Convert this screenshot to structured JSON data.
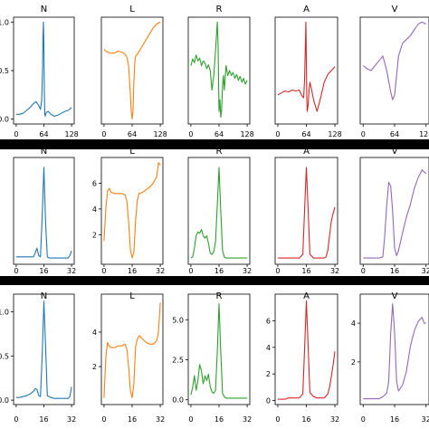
{
  "chart_data": [
    {
      "type": "line",
      "title": "N",
      "color": "#1f77b4",
      "xticks": [
        0,
        64,
        128
      ],
      "yticks": [
        {
          "v": 0.0,
          "label": "0.0"
        },
        {
          "v": 0.5,
          "label": "0.5"
        },
        {
          "v": 1.0,
          "label": "1.0"
        }
      ],
      "xlim": [
        -6,
        134
      ],
      "ylim": [
        -0.05,
        1.05
      ],
      "x": [
        0,
        8,
        16,
        24,
        32,
        40,
        46,
        52,
        56,
        59,
        61,
        62,
        63,
        64,
        65,
        66,
        67,
        68,
        70,
        74,
        80,
        88,
        96,
        104,
        112,
        120,
        128
      ],
      "y": [
        0.05,
        0.05,
        0.06,
        0.09,
        0.12,
        0.16,
        0.18,
        0.14,
        0.1,
        0.2,
        0.55,
        0.85,
        1.0,
        0.75,
        0.3,
        0.05,
        0.03,
        0.05,
        0.07,
        0.08,
        0.05,
        0.03,
        0.04,
        0.06,
        0.08,
        0.09,
        0.12
      ]
    },
    {
      "type": "line",
      "title": "L",
      "color": "#ff7f0e",
      "xticks": [
        0,
        64,
        128
      ],
      "yticks": [],
      "xlim": [
        -6,
        134
      ],
      "ylim": [
        -0.05,
        1.05
      ],
      "x": [
        0,
        4,
        8,
        16,
        24,
        32,
        40,
        48,
        52,
        56,
        58,
        60,
        62,
        64,
        66,
        68,
        70,
        72,
        76,
        80,
        88,
        96,
        104,
        112,
        120,
        128
      ],
      "y": [
        0.72,
        0.7,
        0.69,
        0.68,
        0.68,
        0.7,
        0.69,
        0.67,
        0.64,
        0.55,
        0.4,
        0.25,
        0.08,
        0.0,
        0.1,
        0.38,
        0.58,
        0.65,
        0.67,
        0.7,
        0.76,
        0.82,
        0.88,
        0.94,
        0.98,
        1.0
      ]
    },
    {
      "type": "line",
      "title": "R",
      "color": "#2ca02c",
      "xticks": [
        0,
        64,
        128
      ],
      "yticks": [],
      "xlim": [
        -6,
        134
      ],
      "ylim": [
        -0.05,
        1.05
      ],
      "x": [
        0,
        4,
        8,
        12,
        16,
        20,
        24,
        28,
        32,
        36,
        40,
        44,
        48,
        52,
        56,
        58,
        60,
        62,
        63,
        64,
        66,
        68,
        70,
        72,
        74,
        76,
        80,
        84,
        88,
        92,
        96,
        100,
        104,
        108,
        112,
        116,
        120,
        124,
        128
      ],
      "y": [
        0.55,
        0.62,
        0.58,
        0.66,
        0.6,
        0.63,
        0.55,
        0.6,
        0.58,
        0.52,
        0.56,
        0.5,
        0.3,
        0.45,
        0.7,
        0.85,
        1.0,
        0.75,
        0.4,
        0.08,
        0.2,
        0.02,
        0.1,
        0.35,
        0.45,
        0.3,
        0.55,
        0.45,
        0.5,
        0.45,
        0.48,
        0.42,
        0.46,
        0.4,
        0.44,
        0.38,
        0.42,
        0.36,
        0.4
      ]
    },
    {
      "type": "line",
      "title": "A",
      "color": "#d62728",
      "xticks": [
        0,
        64,
        128
      ],
      "yticks": [],
      "xlim": [
        -6,
        134
      ],
      "ylim": [
        -0.05,
        1.05
      ],
      "x": [
        0,
        8,
        16,
        24,
        32,
        40,
        48,
        54,
        58,
        60,
        62,
        63,
        64,
        65,
        66,
        68,
        70,
        72,
        76,
        80,
        88,
        96,
        104,
        112,
        120,
        128
      ],
      "y": [
        0.25,
        0.27,
        0.29,
        0.28,
        0.3,
        0.29,
        0.3,
        0.24,
        0.22,
        0.4,
        0.8,
        1.0,
        0.6,
        0.2,
        0.08,
        0.15,
        0.3,
        0.38,
        0.3,
        0.2,
        0.08,
        0.22,
        0.38,
        0.46,
        0.5,
        0.54
      ]
    },
    {
      "type": "line",
      "title": "V",
      "color": "#9467bd",
      "xticks": [
        0,
        64,
        128
      ],
      "yticks": [],
      "xlim": [
        -6,
        134
      ],
      "ylim": [
        -0.05,
        1.05
      ],
      "x": [
        0,
        8,
        16,
        24,
        32,
        40,
        48,
        56,
        60,
        64,
        68,
        72,
        80,
        88,
        96,
        104,
        112,
        120,
        128
      ],
      "y": [
        0.55,
        0.52,
        0.5,
        0.55,
        0.6,
        0.65,
        0.5,
        0.28,
        0.2,
        0.25,
        0.45,
        0.65,
        0.78,
        0.82,
        0.86,
        0.92,
        0.98,
        1.0,
        0.98
      ]
    },
    {
      "type": "line",
      "title": "N",
      "color": "#1f77b4",
      "xticks": [
        0,
        16,
        32
      ],
      "yticks": [],
      "xlim": [
        -1.5,
        33.5
      ],
      "ylim": [
        -0.3,
        8.3
      ],
      "x": [
        0,
        2,
        4,
        6,
        8,
        10,
        11,
        12,
        13,
        14,
        15,
        16,
        17,
        18,
        19,
        20,
        22,
        24,
        26,
        28,
        30,
        31,
        32
      ],
      "y": [
        0.3,
        0.3,
        0.3,
        0.3,
        0.3,
        0.3,
        0.6,
        1.0,
        0.4,
        0.3,
        3.5,
        7.5,
        3.0,
        0.3,
        0.2,
        0.2,
        0.2,
        0.2,
        0.2,
        0.2,
        0.2,
        0.4,
        0.8
      ]
    },
    {
      "type": "line",
      "title": "L",
      "color": "#ff7f0e",
      "xticks": [
        0,
        16,
        32
      ],
      "yticks": [
        {
          "v": 2,
          "label": "2"
        },
        {
          "v": 4,
          "label": "4"
        },
        {
          "v": 6,
          "label": "6"
        }
      ],
      "xlim": [
        -1.5,
        33.5
      ],
      "ylim": [
        -0.3,
        8.0
      ],
      "x": [
        0,
        1,
        2,
        3,
        4,
        6,
        8,
        10,
        12,
        13,
        14,
        15,
        16,
        17,
        18,
        19,
        20,
        22,
        24,
        26,
        28,
        30,
        31,
        32
      ],
      "y": [
        1.5,
        4.0,
        5.4,
        5.6,
        5.3,
        5.2,
        5.2,
        5.2,
        5.1,
        4.6,
        3.0,
        0.8,
        0.2,
        0.6,
        3.2,
        4.7,
        5.2,
        5.3,
        5.5,
        5.7,
        6.0,
        6.5,
        7.6,
        7.4
      ]
    },
    {
      "type": "line",
      "title": "R",
      "color": "#2ca02c",
      "xticks": [
        0,
        16,
        32
      ],
      "yticks": [],
      "xlim": [
        -1.5,
        33.5
      ],
      "ylim": [
        -0.3,
        8.3
      ],
      "x": [
        0,
        1,
        2,
        3,
        4,
        5,
        6,
        7,
        8,
        9,
        10,
        11,
        12,
        13,
        14,
        15,
        16,
        17,
        18,
        19,
        20,
        22,
        24,
        26,
        28,
        30,
        32
      ],
      "y": [
        0.2,
        0.3,
        1.0,
        2.0,
        2.3,
        2.2,
        2.5,
        2.0,
        1.8,
        2.0,
        1.4,
        0.6,
        0.5,
        0.7,
        1.5,
        4.5,
        7.5,
        4.0,
        0.8,
        0.3,
        0.2,
        0.2,
        0.2,
        0.2,
        0.2,
        0.2,
        0.2
      ]
    },
    {
      "type": "line",
      "title": "A",
      "color": "#d62728",
      "xticks": [
        0,
        16,
        32
      ],
      "yticks": [],
      "xlim": [
        -1.5,
        33.5
      ],
      "ylim": [
        -0.3,
        8.3
      ],
      "x": [
        0,
        2,
        4,
        6,
        8,
        10,
        12,
        14,
        15,
        16,
        17,
        18,
        20,
        22,
        24,
        26,
        27,
        28,
        29,
        30,
        31,
        32
      ],
      "y": [
        0.2,
        0.2,
        0.2,
        0.2,
        0.2,
        0.2,
        0.2,
        0.5,
        4.0,
        7.5,
        4.0,
        0.5,
        0.2,
        0.2,
        0.2,
        0.2,
        0.3,
        0.8,
        2.0,
        3.2,
        3.8,
        4.3
      ]
    },
    {
      "type": "line",
      "title": "V",
      "color": "#9467bd",
      "xticks": [
        0,
        16,
        32
      ],
      "yticks": [],
      "xlim": [
        -1.5,
        33.5
      ],
      "ylim": [
        -0.3,
        8.3
      ],
      "x": [
        0,
        2,
        4,
        6,
        8,
        10,
        11,
        12,
        13,
        14,
        15,
        16,
        17,
        18,
        20,
        22,
        24,
        26,
        28,
        30,
        32
      ],
      "y": [
        0.2,
        0.2,
        0.2,
        0.2,
        0.2,
        0.3,
        2.0,
        4.5,
        6.3,
        6.0,
        4.0,
        1.0,
        0.4,
        0.8,
        2.2,
        3.5,
        4.5,
        5.8,
        6.7,
        7.3,
        7.0
      ]
    },
    {
      "type": "line",
      "title": "N",
      "color": "#1f77b4",
      "xticks": [
        0,
        16,
        32
      ],
      "yticks": [
        {
          "v": 0.0,
          "label": "0.0"
        },
        {
          "v": 0.5,
          "label": "0.5"
        },
        {
          "v": 1.0,
          "label": "1.0"
        }
      ],
      "xlim": [
        -1.5,
        33.5
      ],
      "ylim": [
        -0.05,
        1.2
      ],
      "x": [
        0,
        2,
        4,
        6,
        8,
        10,
        11,
        12,
        13,
        14,
        15,
        16,
        17,
        18,
        20,
        22,
        24,
        26,
        28,
        30,
        31,
        32
      ],
      "y": [
        0.03,
        0.03,
        0.04,
        0.05,
        0.07,
        0.1,
        0.13,
        0.12,
        0.05,
        0.04,
        0.5,
        1.12,
        0.6,
        0.05,
        0.03,
        0.02,
        0.02,
        0.02,
        0.02,
        0.02,
        0.04,
        0.15
      ]
    },
    {
      "type": "line",
      "title": "L",
      "color": "#ff7f0e",
      "xticks": [
        0,
        16,
        32
      ],
      "yticks": [
        {
          "v": 2,
          "label": "2"
        },
        {
          "v": 4,
          "label": "4"
        }
      ],
      "xlim": [
        -1.5,
        33.5
      ],
      "ylim": [
        -0.2,
        6.2
      ],
      "x": [
        0,
        1,
        2,
        3,
        4,
        6,
        8,
        10,
        12,
        13,
        14,
        15,
        16,
        17,
        18,
        19,
        20,
        22,
        24,
        26,
        28,
        30,
        31,
        32
      ],
      "y": [
        0.2,
        2.5,
        3.4,
        3.2,
        3.1,
        3.1,
        3.2,
        3.2,
        3.3,
        3.0,
        2.0,
        0.6,
        0.2,
        1.0,
        3.2,
        3.6,
        3.8,
        3.6,
        3.4,
        3.3,
        3.3,
        3.5,
        4.0,
        5.7
      ]
    },
    {
      "type": "line",
      "title": "R",
      "color": "#2ca02c",
      "xticks": [
        0,
        16,
        32
      ],
      "yticks": [
        {
          "v": 0.0,
          "label": "0.0"
        },
        {
          "v": 2.5,
          "label": "2.5"
        },
        {
          "v": 5.0,
          "label": "5.0"
        }
      ],
      "xlim": [
        -1.5,
        33.5
      ],
      "ylim": [
        -0.3,
        6.6
      ],
      "x": [
        0,
        1,
        2,
        3,
        4,
        5,
        6,
        7,
        8,
        9,
        10,
        11,
        12,
        13,
        14,
        15,
        16,
        17,
        18,
        19,
        20,
        22,
        24,
        26,
        28,
        30,
        32
      ],
      "y": [
        0.3,
        0.8,
        1.5,
        0.6,
        1.2,
        2.2,
        1.8,
        1.0,
        1.5,
        1.2,
        1.6,
        0.8,
        0.5,
        0.4,
        0.6,
        3.0,
        6.0,
        3.0,
        0.4,
        0.2,
        0.1,
        0.1,
        0.1,
        0.1,
        0.1,
        0.1,
        0.1
      ]
    },
    {
      "type": "line",
      "title": "A",
      "color": "#d62728",
      "xticks": [
        0,
        16,
        32
      ],
      "yticks": [
        {
          "v": 0,
          "label": "0"
        },
        {
          "v": 2,
          "label": "2"
        },
        {
          "v": 4,
          "label": "4"
        },
        {
          "v": 6,
          "label": "6"
        }
      ],
      "xlim": [
        -1.5,
        33.5
      ],
      "ylim": [
        -0.3,
        8.0
      ],
      "x": [
        0,
        2,
        4,
        6,
        8,
        10,
        12,
        14,
        15,
        16,
        17,
        18,
        20,
        22,
        24,
        26,
        28,
        29,
        30,
        31,
        32
      ],
      "y": [
        0.1,
        0.1,
        0.1,
        0.2,
        0.2,
        0.2,
        0.2,
        0.5,
        3.8,
        7.5,
        4.0,
        0.6,
        0.3,
        0.2,
        0.2,
        0.2,
        0.5,
        1.0,
        1.8,
        2.7,
        3.7
      ]
    },
    {
      "type": "line",
      "title": "V",
      "color": "#9467bd",
      "xticks": [
        0,
        16,
        32
      ],
      "yticks": [
        {
          "v": 2,
          "label": "2"
        },
        {
          "v": 4,
          "label": "4"
        }
      ],
      "xlim": [
        -1.5,
        33.5
      ],
      "ylim": [
        -0.2,
        5.5
      ],
      "x": [
        0,
        2,
        4,
        6,
        8,
        10,
        12,
        13,
        14,
        15,
        16,
        17,
        18,
        20,
        22,
        24,
        26,
        28,
        30,
        31,
        32
      ],
      "y": [
        0.1,
        0.1,
        0.1,
        0.1,
        0.1,
        0.2,
        0.4,
        1.0,
        3.5,
        5.0,
        3.5,
        1.0,
        0.5,
        0.8,
        1.5,
        2.8,
        3.6,
        4.1,
        4.3,
        4.0,
        4.0
      ]
    }
  ]
}
